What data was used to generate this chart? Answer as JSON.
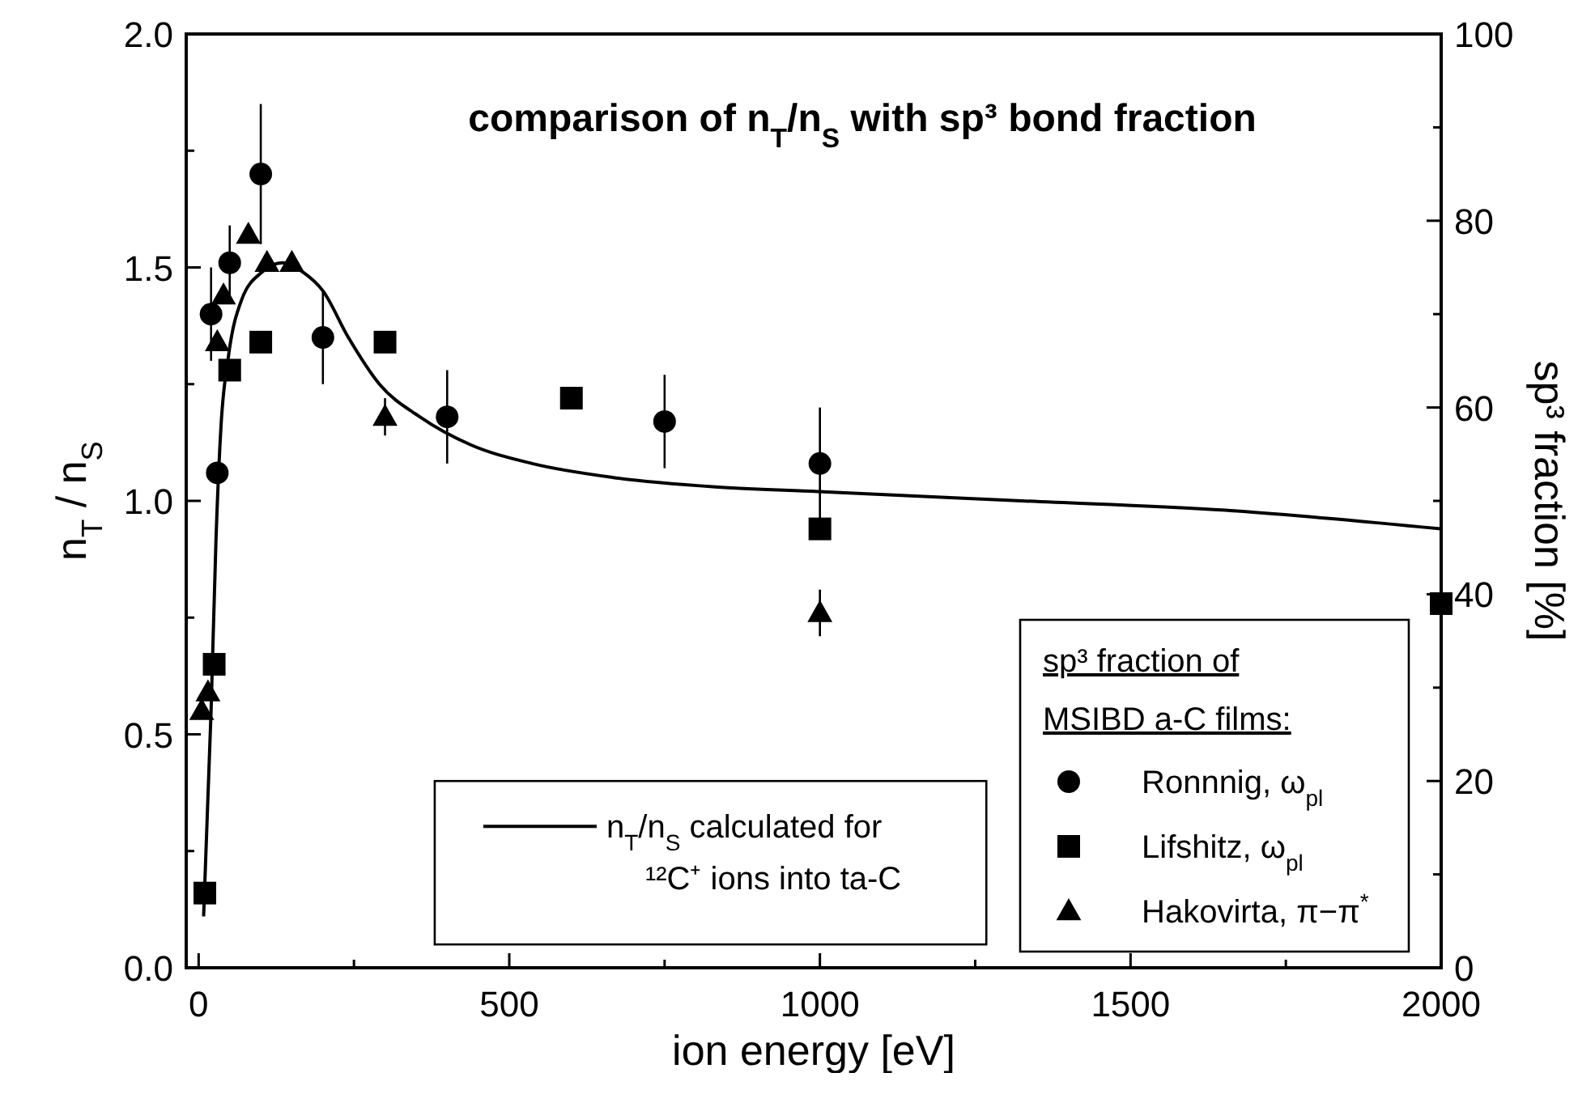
{
  "chart_data": {
    "type": "scatter",
    "title": "comparison of n$_{T}$/n$_{S}$  with sp³ bond fraction",
    "xlabel": "ion energy [eV]",
    "ylabel": "n$_{T}$ / n$_{S}$",
    "y2label": "sp³ fraction [%]",
    "legend_title": "sp³ fraction of MSIBD a-C films:",
    "legend": "bottom right",
    "xlim": [
      -20,
      2000
    ],
    "xticks": [
      0,
      {
        "value": 250,
        "label": null
      },
      500,
      {
        "value": 750,
        "label": null
      },
      1000,
      {
        "value": 1250,
        "label": null
      },
      1500,
      {
        "value": 1750,
        "label": null
      },
      2000
    ],
    "ylim": [
      0,
      2
    ],
    "yticks": [
      {
        "value": 0,
        "label": "0.0"
      },
      {
        "value": 0.25,
        "label": null
      },
      0.5,
      {
        "value": 0.75,
        "label": null
      },
      {
        "value": 1,
        "label": "1.0"
      },
      {
        "value": 1.25,
        "label": null
      },
      1.5,
      {
        "value": 1.75,
        "label": null
      },
      {
        "value": 2,
        "label": "2.0"
      }
    ],
    "y2lim": [
      0,
      100
    ],
    "y2ticks": [
      0,
      {
        "value": 10,
        "label": null
      },
      20,
      {
        "value": 30,
        "label": null
      },
      40,
      {
        "value": 50,
        "label": null
      },
      60,
      {
        "value": 70,
        "label": null
      },
      80,
      {
        "value": 90,
        "label": null
      },
      100
    ],
    "series": [
      {
        "name": "n$_{T}$/n$_{S}$ calculated for ¹²C⁺ ions into ta-C",
        "type": "line",
        "color": "#000000",
        "marker": "none",
        "line_style": "solid",
        "x": [
          8,
          20,
          28,
          36,
          48,
          69,
          102,
          135,
          168,
          200,
          241,
          291,
          356,
          438,
          537,
          668,
          832,
          997,
          1325,
          1653,
          2000
        ],
        "values": [
          0.11,
          0.55,
          0.92,
          1.16,
          1.31,
          1.43,
          1.49,
          1.51,
          1.49,
          1.45,
          1.35,
          1.25,
          1.18,
          1.12,
          1.08,
          1.05,
          1.03,
          1.02,
          1.0,
          0.98,
          0.94
        ]
      },
      {
        "name": "Ronnnig, ω$_{pl}$",
        "color": "#000000",
        "marker": "circle",
        "x": [
          20,
          30,
          50,
          100,
          200,
          400,
          750,
          1000
        ],
        "values": [
          1.4,
          1.06,
          1.51,
          1.7,
          1.35,
          1.18,
          1.17,
          1.08
        ],
        "errors": [
          0.1,
          null,
          0.08,
          0.15,
          0.1,
          0.1,
          0.1,
          0.12
        ]
      },
      {
        "name": "Lifshitz, ω$_{pl}$",
        "color": "#000000",
        "marker": "square",
        "x": [
          10,
          25,
          50,
          100,
          300,
          600,
          1000,
          2000
        ],
        "values": [
          0.16,
          0.65,
          1.28,
          1.34,
          1.34,
          1.22,
          0.94,
          0.78
        ]
      },
      {
        "name": "Hakovirta, π−π$^{*}$",
        "color": "#000000",
        "marker": "triangle",
        "x": [
          5,
          15,
          30,
          40,
          80,
          110,
          150,
          300,
          1000
        ],
        "values": [
          0.55,
          0.59,
          1.34,
          1.44,
          1.57,
          1.51,
          1.51,
          1.18,
          0.76
        ],
        "errors": [
          null,
          null,
          null,
          null,
          null,
          null,
          null,
          0.04,
          0.05
        ]
      }
    ]
  }
}
